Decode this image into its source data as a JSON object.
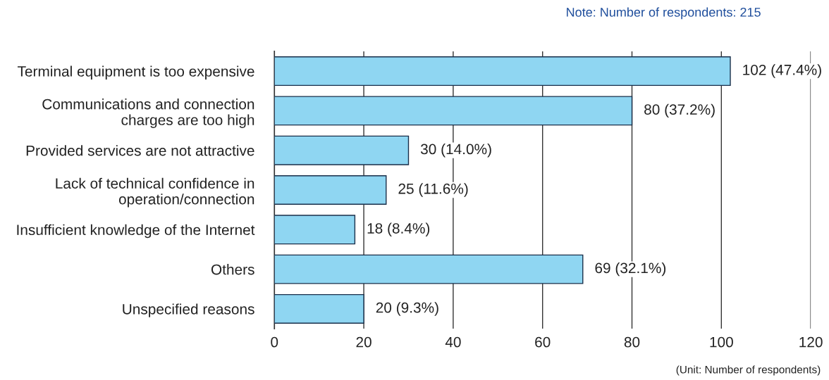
{
  "chart_data": {
    "type": "bar",
    "orientation": "horizontal",
    "categories": [
      "Terminal equipment is too expensive",
      "Communications and connection\ncharges are too high",
      "Provided services are not attractive",
      "Lack of technical confidence in\noperation/connection",
      "Insufficient knowledge of the Internet",
      "Others",
      "Unspecified reasons"
    ],
    "values": [
      102,
      80,
      30,
      25,
      18,
      69,
      20
    ],
    "value_labels": [
      "102 (47.4%)",
      "80 (37.2%)",
      "30 (14.0%)",
      "25 (11.6%)",
      "18 (8.4%)",
      "69 (32.1%)",
      "20 (9.3%)"
    ],
    "color": "#8fd6f2",
    "xlim": [
      0,
      120
    ],
    "xticks": [
      0,
      20,
      40,
      60,
      80,
      100,
      120
    ],
    "grid": "x",
    "annotations": [
      "Note: Number of respondents: 215",
      "(Unit: Number of respondents)"
    ]
  }
}
